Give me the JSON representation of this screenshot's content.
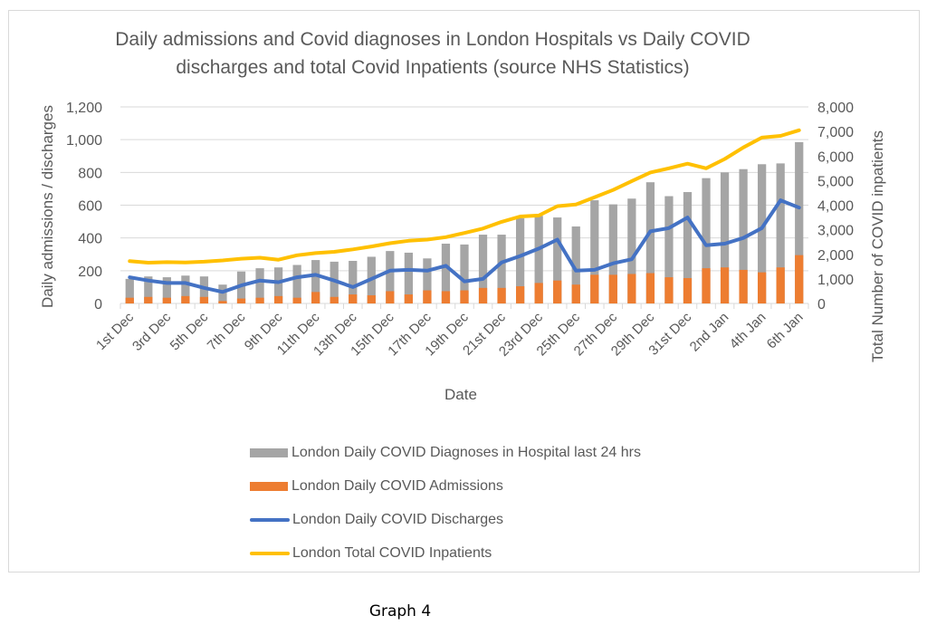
{
  "chart_data": {
    "type": "bar",
    "title": "Daily admissions and Covid diagnoses in London Hospitals vs Daily COVID discharges and total Covid Inpatients (source NHS Statistics)",
    "title_lines": [
      "Daily admissions and Covid diagnoses in London Hospitals vs Daily COVID",
      "discharges and total Covid Inpatients (source NHS Statistics)"
    ],
    "xlabel": "Date",
    "ylabel": "Daily admissions / discharges",
    "y2label": "Total Number of COVID inpatients",
    "ylim": [
      0,
      1200
    ],
    "y2lim": [
      0,
      8000
    ],
    "yticks": [
      "0",
      "200",
      "400",
      "600",
      "800",
      "1,000",
      "1,200"
    ],
    "y2ticks": [
      "0",
      "1,000",
      "2,000",
      "3,000",
      "4,000",
      "5,000",
      "6,000",
      "7,000",
      "8,000"
    ],
    "grid": true,
    "legend_position": "bottom",
    "categories": [
      "1st Dec",
      "2nd Dec",
      "3rd Dec",
      "4th Dec",
      "5th Dec",
      "6th Dec",
      "7th Dec",
      "8th Dec",
      "9th Dec",
      "10th Dec",
      "11th Dec",
      "12th Dec",
      "13th Dec",
      "14th Dec",
      "15th Dec",
      "16th Dec",
      "17th Dec",
      "18th Dec",
      "19th Dec",
      "20th Dec",
      "21st Dec",
      "22nd Dec",
      "23rd Dec",
      "24th Dec",
      "25th Dec",
      "26th Dec",
      "27th Dec",
      "28th Dec",
      "29th Dec",
      "30th Dec",
      "31st Dec",
      "1st Jan",
      "2nd Jan",
      "3rd Jan",
      "4th Jan",
      "5th Jan",
      "6th Jan"
    ],
    "tick_labels_shown": [
      "1st Dec",
      "3rd Dec",
      "5th Dec",
      "7th Dec",
      "9th Dec",
      "11th Dec",
      "13th Dec",
      "15th Dec",
      "17th Dec",
      "19th Dec",
      "21st Dec",
      "23rd Dec",
      "25th Dec",
      "27th Dec",
      "29th Dec",
      "31st Dec",
      "2nd Jan",
      "4th Jan",
      "6th Jan"
    ],
    "series": [
      {
        "name": "London Daily COVID Diagnoses in Hospital last 24 hrs",
        "kind": "bar",
        "axis": "left",
        "color": "#a5a5a5",
        "values": [
          150,
          165,
          160,
          170,
          165,
          115,
          195,
          215,
          220,
          235,
          265,
          255,
          260,
          285,
          320,
          310,
          275,
          365,
          360,
          420,
          420,
          520,
          535,
          525,
          470,
          630,
          605,
          640,
          740,
          655,
          680,
          765,
          800,
          820,
          850,
          855,
          985
        ]
      },
      {
        "name": "London Daily COVID Admissions",
        "kind": "bar",
        "axis": "left",
        "color": "#ed7d31",
        "values": [
          35,
          40,
          35,
          45,
          40,
          15,
          30,
          35,
          45,
          35,
          70,
          40,
          55,
          50,
          75,
          55,
          80,
          75,
          80,
          95,
          95,
          105,
          125,
          140,
          115,
          175,
          175,
          180,
          185,
          160,
          155,
          215,
          220,
          205,
          190,
          220,
          295
        ]
      },
      {
        "name": "London Daily COVID Discharges",
        "kind": "line",
        "axis": "left",
        "color": "#4472c4",
        "values": [
          160,
          140,
          125,
          125,
          95,
          70,
          110,
          140,
          130,
          160,
          175,
          140,
          100,
          150,
          200,
          205,
          200,
          230,
          135,
          150,
          250,
          290,
          335,
          390,
          200,
          205,
          245,
          270,
          440,
          460,
          525,
          355,
          365,
          400,
          460,
          630,
          585
        ]
      },
      {
        "name": "London Total COVID Inpatients",
        "kind": "line",
        "axis": "right",
        "color": "#ffc000",
        "values": [
          1720,
          1660,
          1680,
          1670,
          1700,
          1750,
          1820,
          1860,
          1780,
          1960,
          2050,
          2100,
          2200,
          2320,
          2450,
          2550,
          2600,
          2700,
          2870,
          3050,
          3320,
          3540,
          3580,
          3960,
          4030,
          4320,
          4620,
          4980,
          5330,
          5500,
          5690,
          5500,
          5880,
          6350,
          6750,
          6820,
          7050
        ]
      }
    ]
  },
  "caption": "Graph 4"
}
